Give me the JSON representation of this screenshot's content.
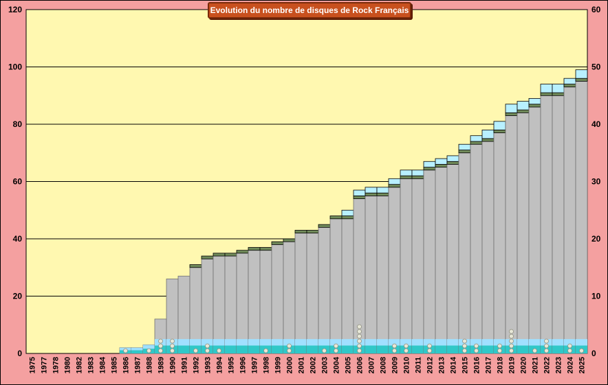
{
  "chart_data": {
    "type": "bar",
    "title": "Evolution  du  nombre de disques de Rock Français",
    "xlabel": "",
    "ylabel": "",
    "ylim": [
      0,
      120
    ],
    "ylim_right": [
      0,
      60
    ],
    "yticks": [
      "0",
      "20",
      "40",
      "60",
      "80",
      "100",
      "120"
    ],
    "yticks_right": [
      "0",
      "10",
      "20",
      "30",
      "40",
      "50",
      "60"
    ],
    "grid": "horizontal",
    "colors": {
      "plot_background": "#fff8b0",
      "frame_background": "#f4a0a0",
      "cumulative_bar": "#c0c0c0",
      "cumulative_cap": "#708a5a",
      "recent_cap": "#b8f0ff",
      "annual_band": "#30c8c8",
      "annual_band_top": "#a0e0ff"
    },
    "categories": [
      "1975",
      "1977",
      "1978",
      "1980",
      "1982",
      "1983",
      "1984",
      "1985",
      "1986",
      "1987",
      "1988",
      "1989",
      "1990",
      "1991",
      "1992",
      "1993",
      "1994",
      "1995",
      "1996",
      "1997",
      "1998",
      "1999",
      "2000",
      "2001",
      "2002",
      "2003",
      "2004",
      "2005",
      "2006",
      "2007",
      "2008",
      "2009",
      "2010",
      "2011",
      "2012",
      "2013",
      "2014",
      "2015",
      "2016",
      "2017",
      "2018",
      "2019",
      "2020",
      "2021",
      "2022",
      "2023",
      "2024",
      "2025"
    ],
    "series": [
      {
        "values": [
          0,
          0,
          0,
          0,
          0,
          0,
          0,
          0,
          2,
          2,
          3,
          12,
          26,
          27,
          30,
          33,
          34,
          34,
          35,
          36,
          36,
          38,
          39,
          42,
          42,
          44,
          47,
          47,
          54,
          55,
          55,
          58,
          61,
          61,
          64,
          65,
          66,
          70,
          73,
          74,
          77,
          83,
          84,
          86,
          90,
          90,
          93,
          95
        ]
      },
      {
        "values": [
          0,
          0,
          0,
          0,
          0,
          0,
          0,
          0,
          0,
          0,
          0,
          0,
          0,
          0,
          1,
          1,
          1,
          1,
          1,
          1,
          1,
          1,
          1,
          1,
          1,
          1,
          1,
          1,
          1,
          1,
          1,
          1,
          1,
          1,
          1,
          1,
          1,
          1,
          1,
          1,
          1,
          1,
          1,
          1,
          1,
          1,
          1,
          1
        ]
      },
      {
        "values": [
          0,
          0,
          0,
          0,
          0,
          0,
          0,
          0,
          0,
          0,
          0,
          0,
          0,
          0,
          0,
          0,
          0,
          0,
          0,
          0,
          0,
          0,
          0,
          0,
          0,
          0,
          0,
          2,
          2,
          2,
          2,
          2,
          2,
          2,
          2,
          2,
          2,
          2,
          2,
          3,
          3,
          3,
          3,
          2,
          3,
          3,
          2,
          3
        ]
      }
    ]
  }
}
